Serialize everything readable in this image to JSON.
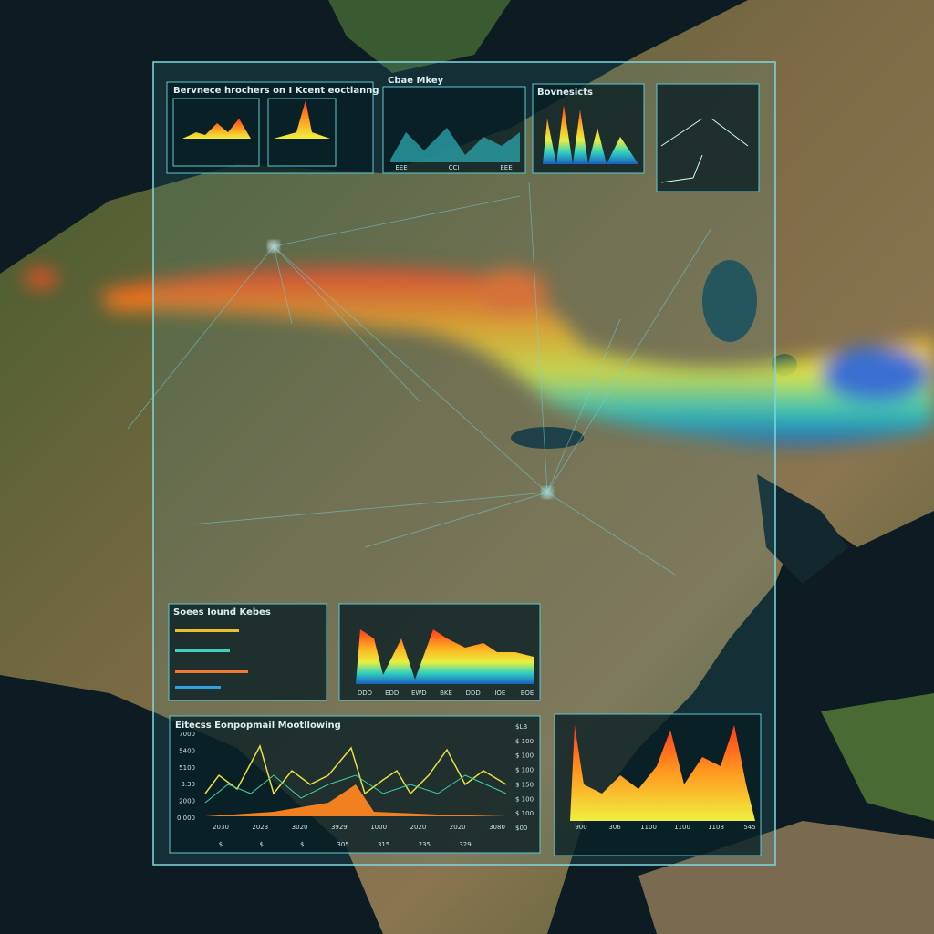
{
  "panels": {
    "top_left": {
      "title": "Bervnece hrochers on I Kcent eoctlanng"
    },
    "top_mid": {
      "title": "Cbae Mkey",
      "x_labels": [
        "EEE",
        "CCI",
        "EEE"
      ]
    },
    "top_right": {
      "title": "Bovnesicts"
    },
    "mid_left": {
      "title": "Soees Iound Kebes"
    },
    "mid_chart": {
      "x_labels": [
        "DDD",
        "EDD",
        "EWD",
        "BKE",
        "DDD",
        "IOE",
        "BOE"
      ]
    },
    "bottom": {
      "title": "Eitecss Eonpopmail Mootllowing",
      "y_labels": [
        "7000",
        "5400",
        "5100",
        "3.30",
        "2000",
        "0.000"
      ],
      "y2_labels": [
        "$LB",
        "$ 100",
        "$ 100",
        "$ 100",
        "$ 150",
        "$ 100",
        "$ 100",
        "$00"
      ],
      "x_labels": [
        "2030",
        "2023",
        "3020",
        "3929",
        "1000",
        "2020",
        "2020",
        "3080"
      ],
      "x_sub": [
        "$",
        "$",
        "$",
        "305",
        "315",
        "235",
        "329"
      ]
    },
    "bottom_right": {
      "x_labels": [
        "900",
        "306",
        "1100",
        "1100",
        "1108",
        "545"
      ]
    }
  }
}
